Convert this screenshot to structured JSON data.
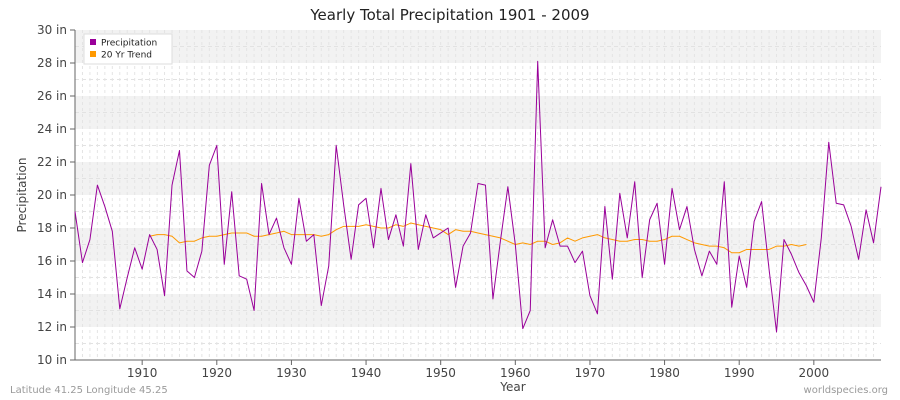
{
  "chart_data": {
    "type": "line",
    "title": "Yearly Total Precipitation 1901 - 2009",
    "xlabel": "Year",
    "ylabel": "Precipitation",
    "ylim": [
      10,
      30
    ],
    "xlim": [
      1901,
      2009
    ],
    "y_ticks": [
      10,
      12,
      14,
      16,
      18,
      20,
      22,
      24,
      26,
      28,
      30
    ],
    "y_tick_labels": [
      "10 in",
      "12 in",
      "14 in",
      "16 in",
      "18 in",
      "20 in",
      "22 in",
      "24 in",
      "26 in",
      "28 in",
      "30 in"
    ],
    "x_ticks": [
      1910,
      1920,
      1930,
      1940,
      1950,
      1960,
      1970,
      1980,
      1990,
      2000
    ],
    "x_tick_labels": [
      "1910",
      "1920",
      "1930",
      "1940",
      "1950",
      "1960",
      "1970",
      "1980",
      "1990",
      "2000"
    ],
    "legend_position": "top-left",
    "series": [
      {
        "name": "Precipitation",
        "color": "#990099",
        "start_year": 1901,
        "values": [
          19.0,
          15.9,
          17.3,
          20.6,
          19.3,
          17.8,
          13.1,
          15.0,
          16.8,
          15.5,
          17.6,
          16.7,
          13.9,
          20.6,
          22.7,
          15.4,
          15.0,
          16.6,
          21.8,
          23.0,
          15.8,
          20.2,
          15.1,
          14.9,
          13.0,
          20.7,
          17.6,
          18.6,
          16.8,
          15.8,
          19.8,
          17.2,
          17.6,
          13.3,
          15.7,
          23.0,
          19.4,
          16.1,
          19.4,
          19.8,
          16.8,
          20.4,
          17.3,
          18.8,
          16.9,
          21.9,
          16.7,
          18.8,
          17.4,
          17.7,
          18.0,
          14.4,
          16.9,
          17.7,
          20.7,
          20.6,
          13.7,
          17.2,
          20.5,
          17.0,
          11.9,
          13.0,
          28.1,
          16.8,
          18.5,
          16.9,
          16.9,
          15.9,
          16.6,
          13.9,
          12.8,
          19.3,
          14.9,
          20.1,
          17.4,
          20.8,
          15.0,
          18.5,
          19.5,
          15.8,
          20.4,
          17.9,
          19.3,
          16.7,
          15.1,
          16.6,
          15.8,
          20.8,
          13.2,
          16.3,
          14.4,
          18.4,
          19.6,
          15.5,
          11.7,
          17.3,
          16.4,
          15.3,
          14.5,
          13.5,
          17.4,
          23.2,
          19.5,
          19.4,
          18.1,
          16.1,
          19.1,
          17.1,
          20.5
        ]
      },
      {
        "name": "20 Yr Trend",
        "color": "#ff9900",
        "start_year": 1911,
        "values": [
          17.5,
          17.6,
          17.6,
          17.5,
          17.1,
          17.2,
          17.2,
          17.4,
          17.5,
          17.5,
          17.6,
          17.7,
          17.7,
          17.7,
          17.5,
          17.5,
          17.6,
          17.7,
          17.8,
          17.6,
          17.6,
          17.6,
          17.6,
          17.5,
          17.6,
          17.9,
          18.1,
          18.1,
          18.1,
          18.2,
          18.1,
          18.0,
          18.0,
          18.2,
          18.1,
          18.3,
          18.2,
          18.1,
          18.0,
          17.9,
          17.6,
          17.9,
          17.8,
          17.8,
          17.7,
          17.6,
          17.5,
          17.4,
          17.2,
          17.0,
          17.1,
          17.0,
          17.2,
          17.2,
          17.0,
          17.1,
          17.4,
          17.2,
          17.4,
          17.5,
          17.6,
          17.4,
          17.3,
          17.2,
          17.2,
          17.3,
          17.3,
          17.2,
          17.2,
          17.3,
          17.5,
          17.5,
          17.3,
          17.1,
          17.0,
          16.9,
          16.9,
          16.8,
          16.5,
          16.5,
          16.7,
          16.7,
          16.7,
          16.7,
          16.9,
          16.9,
          17.0,
          16.9,
          17.0
        ]
      }
    ]
  },
  "footer": {
    "left": "Latitude 41.25 Longitude 45.25",
    "right": "worldspecies.org"
  }
}
